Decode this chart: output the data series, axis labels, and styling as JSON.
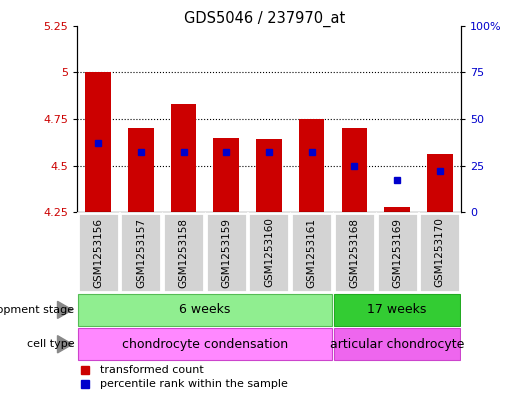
{
  "title": "GDS5046 / 237970_at",
  "samples": [
    "GSM1253156",
    "GSM1253157",
    "GSM1253158",
    "GSM1253159",
    "GSM1253160",
    "GSM1253161",
    "GSM1253168",
    "GSM1253169",
    "GSM1253170"
  ],
  "bar_bottoms": [
    4.25,
    4.25,
    4.25,
    4.25,
    4.25,
    4.25,
    4.25,
    4.25,
    4.25
  ],
  "bar_tops": [
    5.0,
    4.7,
    4.83,
    4.65,
    4.64,
    4.75,
    4.7,
    4.28,
    4.56
  ],
  "percentile_values": [
    4.62,
    4.57,
    4.57,
    4.57,
    4.57,
    4.57,
    4.5,
    4.42,
    4.47
  ],
  "ylim_left": [
    4.25,
    5.25
  ],
  "ylim_right": [
    0,
    100
  ],
  "yticks_left": [
    4.25,
    4.5,
    4.75,
    5.0,
    5.25
  ],
  "yticks_right": [
    0,
    25,
    50,
    75,
    100
  ],
  "ytick_labels_left": [
    "4.25",
    "4.5",
    "4.75",
    "5",
    "5.25"
  ],
  "ytick_labels_right": [
    "0",
    "25",
    "50",
    "75",
    "100%"
  ],
  "bar_color": "#cc0000",
  "percentile_color": "#0000cc",
  "group1_samples": 6,
  "group2_samples": 3,
  "dev_stage_group1": "6 weeks",
  "dev_stage_group2": "17 weeks",
  "cell_type_group1": "chondrocyte condensation",
  "cell_type_group2": "articular chondrocyte",
  "dev_stage_color_light": "#90ee90",
  "dev_stage_color_dark": "#33cc33",
  "cell_type_color_light": "#ff88ff",
  "cell_type_color_dark": "#ee66ee",
  "legend_bar_label": "transformed count",
  "legend_pct_label": "percentile rank within the sample",
  "plot_bg_color": "#ffffff",
  "tick_label_color_left": "#cc0000",
  "tick_label_color_right": "#0000cc",
  "sample_box_color": "#d3d3d3",
  "label_text_color": "#000000",
  "grid_yticks": [
    4.5,
    4.75,
    5.0
  ]
}
